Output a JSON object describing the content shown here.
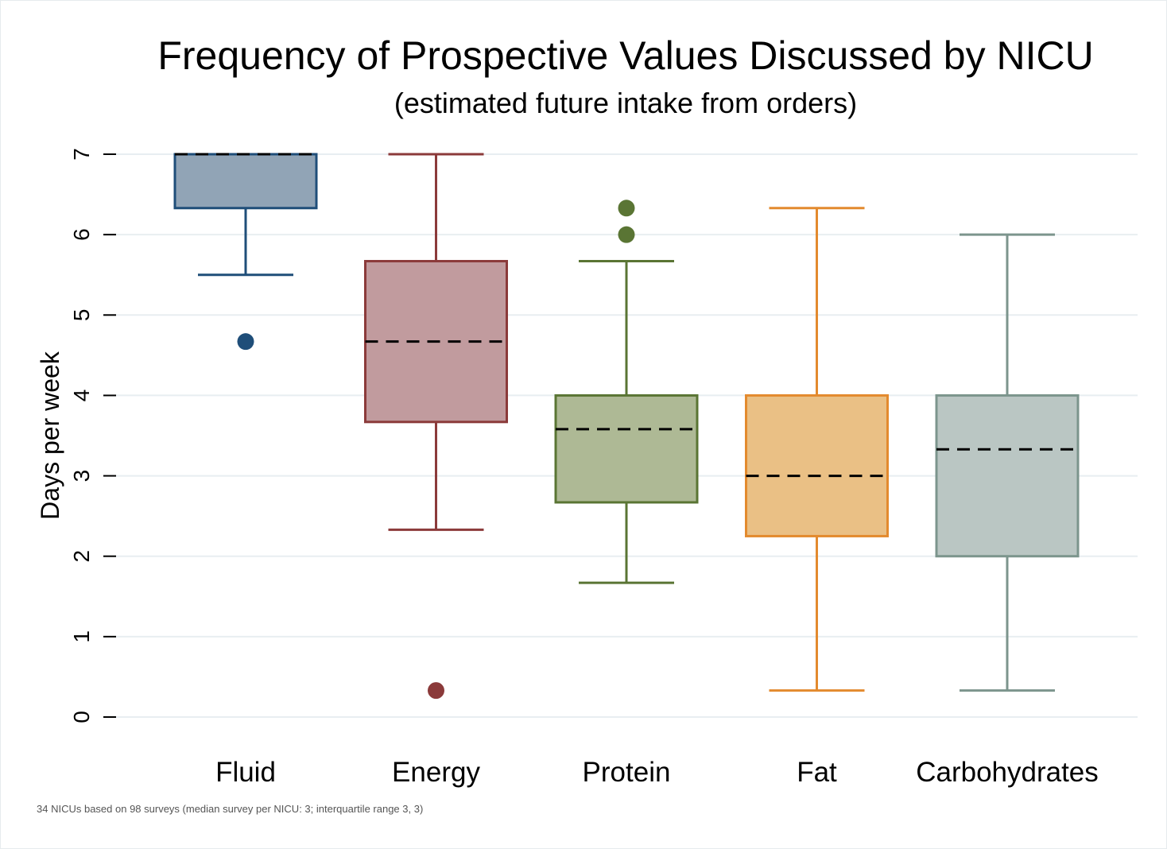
{
  "chart_data": {
    "type": "box",
    "title": "Frequency of Prospective Values Discussed by NICU",
    "subtitle": "(estimated future intake from orders)",
    "ylabel": "Days per week",
    "xlabel": "",
    "ylim": [
      0,
      7
    ],
    "yticks": [
      "0",
      "1",
      "2",
      "3",
      "4",
      "5",
      "6",
      "7"
    ],
    "grid": true,
    "note": "34 NICUs based on 98 surveys (median survey per NICU: 3; interquartile range 3, 3)",
    "series": [
      {
        "name": "Fluid",
        "color": "#1f4e79",
        "fill": "#91a4b6",
        "whisker_low": 5.5,
        "q1": 6.33,
        "median": 7.0,
        "q3": 7.0,
        "whisker_high": 7.0,
        "outliers": [
          4.67
        ]
      },
      {
        "name": "Energy",
        "color": "#8b3a3a",
        "fill": "#c19b9e",
        "whisker_low": 2.33,
        "q1": 3.67,
        "median": 4.67,
        "q3": 5.67,
        "whisker_high": 7.0,
        "outliers": [
          0.33
        ]
      },
      {
        "name": "Protein",
        "color": "#5a7534",
        "fill": "#aeb995",
        "whisker_low": 1.67,
        "q1": 2.67,
        "median": 3.58,
        "q3": 4.0,
        "whisker_high": 5.67,
        "outliers": [
          6.0,
          6.33
        ]
      },
      {
        "name": "Fat",
        "color": "#e38a2e",
        "fill": "#eac085",
        "whisker_low": 0.33,
        "q1": 2.25,
        "median": 3.0,
        "q3": 4.0,
        "whisker_high": 6.33,
        "outliers": []
      },
      {
        "name": "Carbohydrates",
        "color": "#7c958d",
        "fill": "#bac6c3",
        "whisker_low": 0.33,
        "q1": 2.0,
        "median": 3.33,
        "q3": 4.0,
        "whisker_high": 6.0,
        "outliers": []
      }
    ]
  }
}
